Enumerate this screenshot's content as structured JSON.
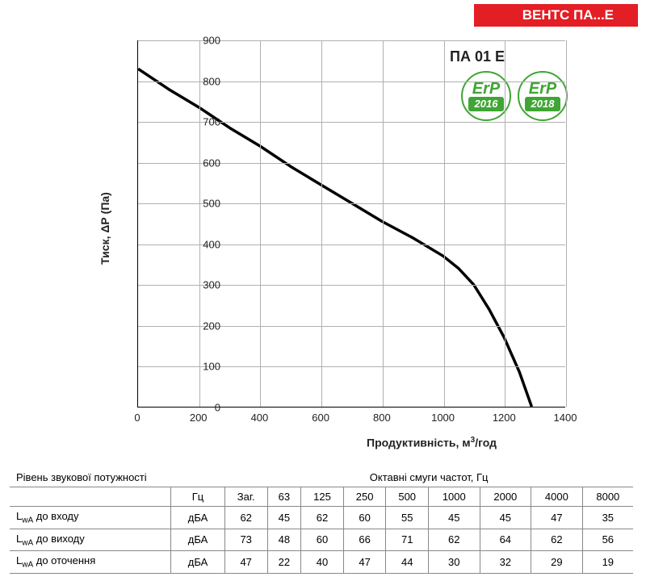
{
  "header": {
    "title": "ВЕНТС ПА...Е"
  },
  "chart": {
    "type": "line",
    "title": "ПА 01 Е",
    "xlabel": "Продуктивність, м³/год",
    "ylabel": "Тиск, ΔР (Па)",
    "xlim": [
      0,
      1400
    ],
    "ylim": [
      0,
      900
    ],
    "xtick_step": 200,
    "ytick_step": 100,
    "xticks": [
      0,
      200,
      400,
      600,
      800,
      1000,
      1200,
      1400
    ],
    "yticks": [
      0,
      100,
      200,
      300,
      400,
      500,
      600,
      700,
      800,
      900
    ],
    "line_color": "#000000",
    "line_width": 3.5,
    "grid_color": "#b0b0b0",
    "background_color": "#ffffff",
    "font_color": "#222222",
    "label_fontsize": 14,
    "tick_fontsize": 13,
    "title_fontsize": 18,
    "series": {
      "x": [
        0,
        100,
        200,
        300,
        400,
        500,
        600,
        700,
        800,
        900,
        1000,
        1050,
        1100,
        1150,
        1200,
        1250,
        1290
      ],
      "y": [
        830,
        780,
        735,
        685,
        640,
        590,
        545,
        500,
        455,
        415,
        370,
        340,
        300,
        240,
        170,
        85,
        0
      ]
    }
  },
  "badges": [
    {
      "top": "ErP",
      "year": "2016",
      "ring_color": "#3fa535"
    },
    {
      "top": "ErP",
      "year": "2018",
      "ring_color": "#3fa535"
    }
  ],
  "sound_table": {
    "header_left": "Рівень звукової потужності",
    "header_right": "Октавні смуги частот, Гц",
    "freq_unit_label": "Гц",
    "col_labels": [
      "Заг.",
      "63",
      "125",
      "250",
      "500",
      "1000",
      "2000",
      "4000",
      "8000"
    ],
    "unit": "дБА",
    "rows": [
      {
        "label": "LwA до входу",
        "values": [
          62,
          45,
          62,
          60,
          55,
          45,
          45,
          47,
          35
        ]
      },
      {
        "label": "LwA до виходу",
        "values": [
          73,
          48,
          60,
          66,
          71,
          62,
          64,
          62,
          56
        ]
      },
      {
        "label": "LwA до оточення",
        "values": [
          47,
          22,
          40,
          47,
          44,
          30,
          32,
          29,
          19
        ]
      }
    ],
    "border_color": "#888888",
    "text_color": "#222222",
    "fontsize": 13
  },
  "colors": {
    "header_bg": "#e31e24",
    "header_text": "#ffffff",
    "badge_green": "#3fa535"
  }
}
